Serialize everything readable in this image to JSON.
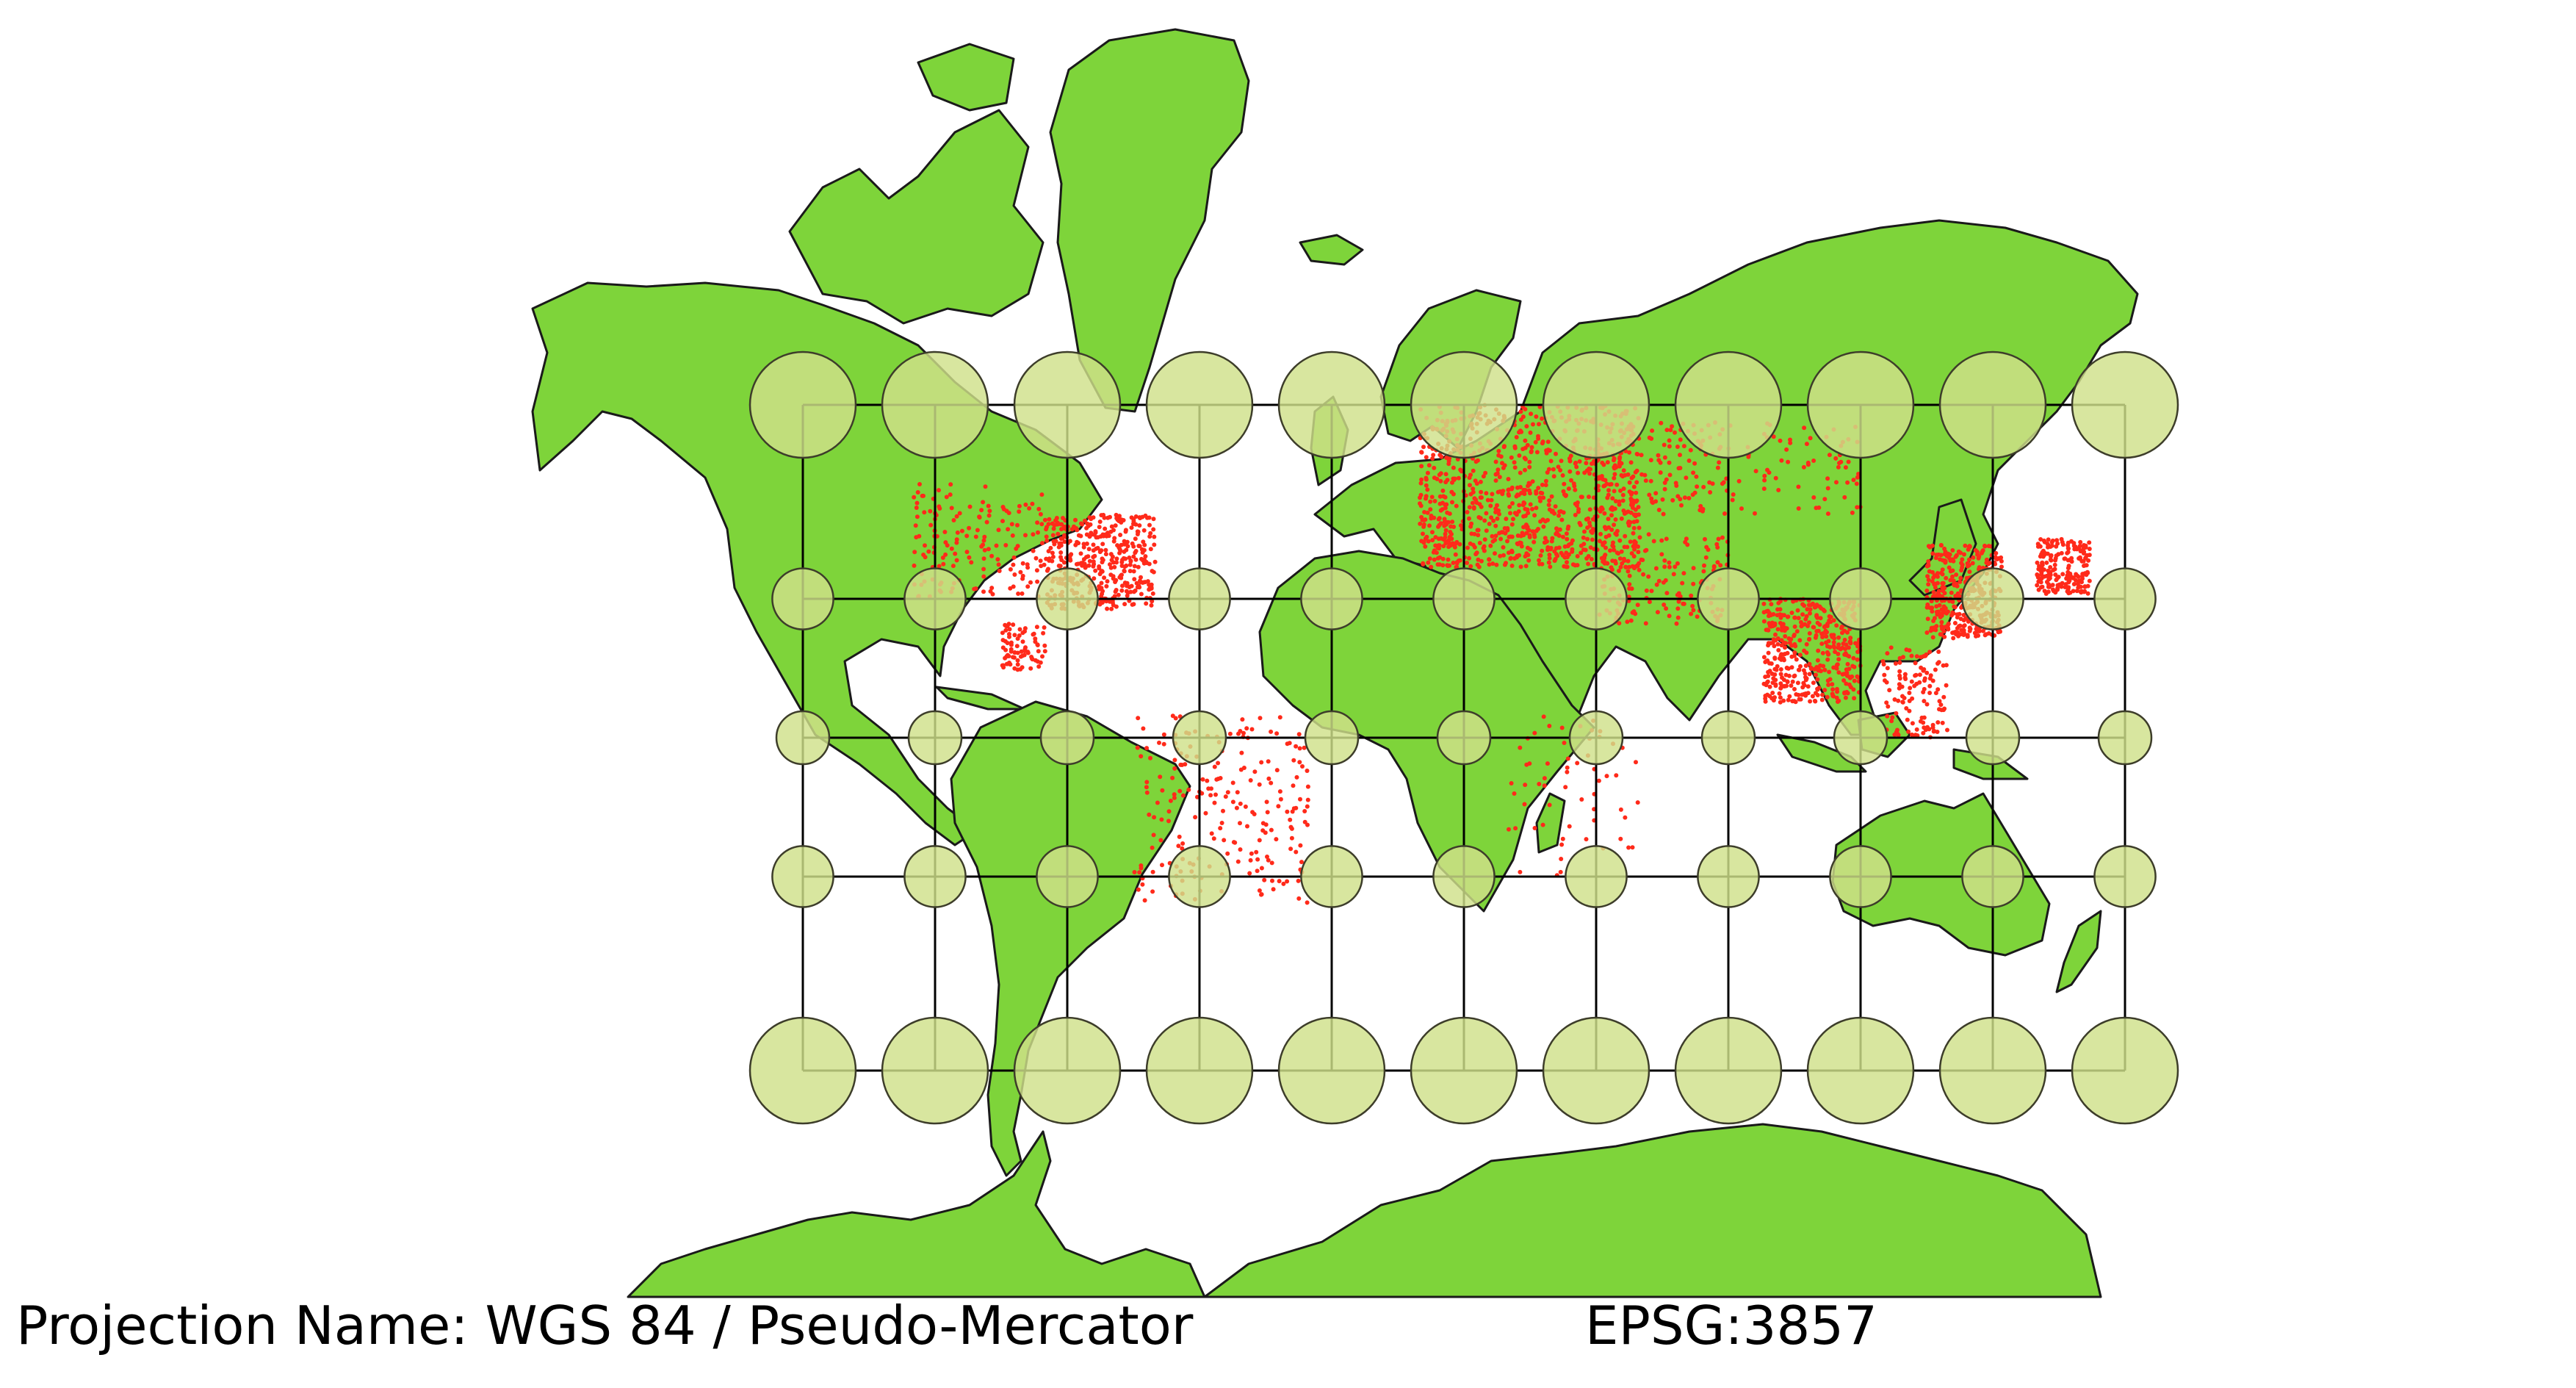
{
  "map": {
    "projection_label": "Projection Name: WGS 84 / Pseudo-Mercator",
    "epsg_label": "EPSG:3857",
    "colors": {
      "land": "#7ed43a",
      "coast": "#1a1a1a",
      "populated_places": "#ff2a1a",
      "indicatrix_fill": "#cfe08a",
      "indicatrix_stroke": "#3d3d2a",
      "graticule": "#000000",
      "background": "#ffffff"
    },
    "graticule": {
      "longitudes": [
        -150,
        -120,
        -90,
        -60,
        -30,
        0,
        30,
        60,
        90,
        120,
        150
      ],
      "latitudes": [
        -60,
        -30,
        0,
        30,
        60
      ]
    },
    "indicatrix": {
      "longitudes": [
        -150,
        -120,
        -90,
        -60,
        -30,
        0,
        30,
        60,
        90,
        120,
        150
      ],
      "latitudes": [
        60,
        30,
        0,
        -30,
        -60
      ]
    },
    "layers": [
      "land",
      "populated-places",
      "graticule",
      "tissot-indicatrix"
    ]
  }
}
